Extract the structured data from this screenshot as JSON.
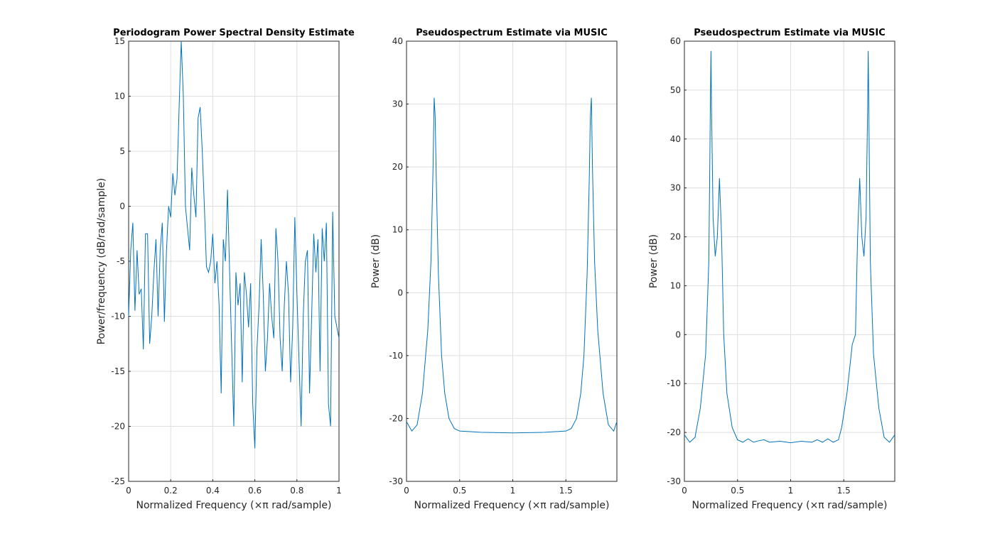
{
  "chart_data": [
    {
      "type": "line",
      "title": "Periodogram Power Spectral Density Estimate",
      "xlabel": "Normalized Frequency  (×π rad/sample)",
      "ylabel": "Power/frequency (dB/rad/sample)",
      "color": "#0072bd",
      "grid": true,
      "xlim": [
        0,
        1
      ],
      "xticks": [
        0,
        0.2,
        0.4,
        0.6,
        0.8,
        1
      ],
      "ylim": [
        -25,
        15
      ],
      "yticks": [
        -25,
        -20,
        -15,
        -10,
        -5,
        0,
        5,
        10,
        15
      ],
      "x": [
        0,
        0.01,
        0.02,
        0.03,
        0.04,
        0.05,
        0.06,
        0.07,
        0.08,
        0.09,
        0.1,
        0.11,
        0.12,
        0.13,
        0.14,
        0.15,
        0.16,
        0.17,
        0.18,
        0.19,
        0.2,
        0.21,
        0.22,
        0.23,
        0.24,
        0.25,
        0.26,
        0.27,
        0.28,
        0.29,
        0.3,
        0.31,
        0.32,
        0.33,
        0.34,
        0.35,
        0.36,
        0.37,
        0.38,
        0.39,
        0.4,
        0.41,
        0.42,
        0.43,
        0.44,
        0.45,
        0.46,
        0.47,
        0.48,
        0.49,
        0.5,
        0.51,
        0.52,
        0.53,
        0.54,
        0.55,
        0.56,
        0.57,
        0.58,
        0.59,
        0.6,
        0.61,
        0.62,
        0.63,
        0.64,
        0.65,
        0.66,
        0.67,
        0.68,
        0.69,
        0.7,
        0.71,
        0.72,
        0.73,
        0.74,
        0.75,
        0.76,
        0.77,
        0.78,
        0.79,
        0.8,
        0.81,
        0.82,
        0.83,
        0.84,
        0.85,
        0.86,
        0.87,
        0.88,
        0.89,
        0.9,
        0.91,
        0.92,
        0.93,
        0.94,
        0.95,
        0.96,
        0.97,
        0.98,
        0.99,
        1
      ],
      "values": [
        -10,
        -4,
        -1.5,
        -9.5,
        -4,
        -8,
        -7.5,
        -13,
        -2.5,
        -2.5,
        -12.5,
        -10,
        -6,
        -3,
        -10,
        -4,
        -1.5,
        -10.5,
        -4,
        0,
        -1,
        3,
        1,
        2.5,
        9,
        15,
        10,
        0,
        -2,
        -4,
        3.5,
        1,
        -1,
        8,
        9,
        5,
        0,
        -5.5,
        -6,
        -5,
        -2.5,
        -7,
        -5,
        -9,
        -17,
        -3,
        -5,
        1.5,
        -6,
        -13,
        -20,
        -6,
        -9,
        -7,
        -16,
        -6,
        -8,
        -11,
        -7,
        -18,
        -22,
        -13,
        -9,
        -3,
        -8,
        -15,
        -12,
        -7,
        -10,
        -12,
        -2,
        -5,
        -12,
        -15,
        -9,
        -5,
        -8,
        -16,
        -11,
        -1,
        -8,
        -14,
        -20,
        -10,
        -5,
        -4,
        -17,
        -10,
        -2.5,
        -6,
        -3,
        -15,
        -2,
        -5,
        -1.5,
        -18,
        -20,
        -0.5,
        -10,
        -11,
        -12
      ]
    },
    {
      "type": "line",
      "title": "Pseudospectrum Estimate via MUSIC",
      "xlabel": "Normalized Frequency  (×π rad/sample)",
      "ylabel": "Power (dB)",
      "color": "#0072bd",
      "grid": true,
      "xlim": [
        0,
        1.98
      ],
      "xticks": [
        0,
        0.5,
        1,
        1.5
      ],
      "ylim": [
        -30,
        40
      ],
      "yticks": [
        -30,
        -20,
        -10,
        0,
        10,
        20,
        30,
        40
      ],
      "x": [
        0,
        0.05,
        0.1,
        0.15,
        0.2,
        0.23,
        0.25,
        0.26,
        0.27,
        0.28,
        0.3,
        0.33,
        0.36,
        0.4,
        0.45,
        0.5,
        0.7,
        1.0,
        1.3,
        1.5,
        1.55,
        1.6,
        1.64,
        1.67,
        1.7,
        1.72,
        1.73,
        1.74,
        1.75,
        1.77,
        1.8,
        1.85,
        1.9,
        1.95,
        1.98
      ],
      "values": [
        -20.5,
        -22,
        -21,
        -16,
        -6,
        5,
        20,
        31,
        28,
        18,
        3,
        -10,
        -16,
        -20,
        -21.6,
        -22,
        -22.2,
        -22.3,
        -22.2,
        -22,
        -21.6,
        -20,
        -16,
        -10,
        3,
        18,
        28,
        31,
        20,
        5,
        -6,
        -16,
        -21,
        -22,
        -20.5
      ]
    },
    {
      "type": "line",
      "title": "Pseudospectrum Estimate via MUSIC",
      "xlabel": "Normalized Frequency  (×π rad/sample)",
      "ylabel": "Power (dB)",
      "color": "#0072bd",
      "grid": true,
      "xlim": [
        0,
        1.98
      ],
      "xticks": [
        0,
        0.5,
        1,
        1.5
      ],
      "ylim": [
        -30,
        60
      ],
      "yticks": [
        -30,
        -20,
        -10,
        0,
        10,
        20,
        30,
        40,
        50,
        60
      ],
      "x": [
        0,
        0.05,
        0.1,
        0.15,
        0.2,
        0.23,
        0.245,
        0.25,
        0.255,
        0.27,
        0.29,
        0.31,
        0.33,
        0.35,
        0.37,
        0.4,
        0.45,
        0.5,
        0.55,
        0.6,
        0.65,
        0.7,
        0.75,
        0.8,
        0.9,
        1.0,
        1.1,
        1.2,
        1.25,
        1.3,
        1.35,
        1.4,
        1.45,
        1.48,
        1.53,
        1.58,
        1.61,
        1.63,
        1.65,
        1.67,
        1.69,
        1.71,
        1.725,
        1.73,
        1.735,
        1.75,
        1.78,
        1.83,
        1.88,
        1.93,
        1.98
      ],
      "values": [
        -20.5,
        -22,
        -21,
        -15,
        -4,
        15,
        48,
        58,
        47,
        24,
        16,
        20,
        32,
        20,
        0,
        -12,
        -19,
        -21.5,
        -22,
        -21.3,
        -22,
        -21.7,
        -21.5,
        -22,
        -21.8,
        -22.1,
        -21.8,
        -22,
        -21.5,
        -22,
        -21.3,
        -22,
        -21.5,
        -19,
        -12,
        -2,
        0,
        20,
        32,
        20,
        16,
        24,
        47,
        58,
        48,
        15,
        -4,
        -15,
        -21,
        -22,
        -20.5
      ]
    }
  ]
}
